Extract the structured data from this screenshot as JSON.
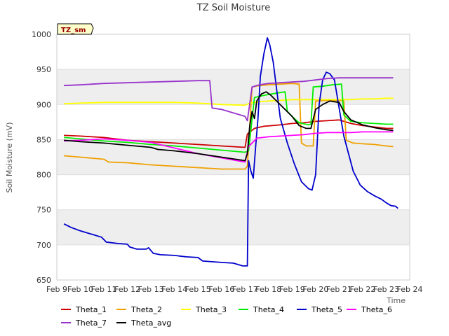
{
  "chart_data": {
    "type": "line",
    "title": "TZ Soil Moisture",
    "xlabel": "Time",
    "ylabel": "Soil Moisture (mV)",
    "badge": "TZ_sm",
    "xlim": [
      9,
      24
    ],
    "ylim": [
      650,
      1000
    ],
    "x_ticks": [
      9,
      10,
      11,
      12,
      13,
      14,
      15,
      16,
      17,
      18,
      19,
      20,
      21,
      22,
      23,
      24
    ],
    "x_tick_labels": [
      "Feb 9",
      "Feb 10",
      "Feb 11",
      "Feb 12",
      "Feb 13",
      "Feb 14",
      "Feb 15",
      "Feb 16",
      "Feb 17",
      "Feb 18",
      "Feb 19",
      "Feb 20",
      "Feb 21",
      "Feb 22",
      "Feb 23",
      "Feb 24"
    ],
    "y_ticks": [
      650,
      700,
      750,
      800,
      850,
      900,
      950,
      1000
    ],
    "y_tick_labels": [
      "650",
      "700",
      "750",
      "800",
      "850",
      "900",
      "950",
      "1000"
    ],
    "grid": true,
    "series": [
      {
        "name": "Theta_1",
        "color": "#cc0000",
        "points": [
          [
            9.3,
            856
          ],
          [
            10,
            855
          ],
          [
            11,
            853
          ],
          [
            12,
            849
          ],
          [
            13,
            847
          ],
          [
            14,
            845
          ],
          [
            15,
            843
          ],
          [
            16,
            841
          ],
          [
            17,
            839
          ],
          [
            17.1,
            858
          ],
          [
            17.4,
            866
          ],
          [
            17.8,
            869
          ],
          [
            18.5,
            871
          ],
          [
            19,
            873
          ],
          [
            19.5,
            874
          ],
          [
            20,
            876
          ],
          [
            20.5,
            877
          ],
          [
            21,
            878
          ],
          [
            21.5,
            873
          ],
          [
            22,
            870
          ],
          [
            22.5,
            868
          ],
          [
            23,
            866
          ],
          [
            23.3,
            866
          ]
        ]
      },
      {
        "name": "Theta_2",
        "color": "#f0a000",
        "points": [
          [
            9.3,
            827
          ],
          [
            10,
            825
          ],
          [
            11,
            822
          ],
          [
            11.2,
            818
          ],
          [
            12,
            817
          ],
          [
            13,
            814
          ],
          [
            14,
            812
          ],
          [
            15,
            810
          ],
          [
            16,
            808
          ],
          [
            17,
            808
          ],
          [
            17.1,
            812
          ],
          [
            17.3,
            925
          ],
          [
            17.6,
            927
          ],
          [
            18,
            928
          ],
          [
            18.5,
            929
          ],
          [
            19,
            930
          ],
          [
            19.3,
            929
          ],
          [
            19.4,
            845
          ],
          [
            19.6,
            841
          ],
          [
            19.9,
            841
          ],
          [
            20,
            905
          ],
          [
            20.5,
            906
          ],
          [
            21,
            906
          ],
          [
            21.2,
            905
          ],
          [
            21.3,
            849
          ],
          [
            21.6,
            845
          ],
          [
            22,
            844
          ],
          [
            22.5,
            843
          ],
          [
            23,
            841
          ],
          [
            23.3,
            840
          ]
        ]
      },
      {
        "name": "Theta_3",
        "color": "#ffff00",
        "points": [
          [
            9.3,
            901
          ],
          [
            10,
            902
          ],
          [
            11,
            903
          ],
          [
            12,
            903
          ],
          [
            13,
            903
          ],
          [
            14,
            903
          ],
          [
            15,
            902
          ],
          [
            16,
            900
          ],
          [
            17,
            899
          ],
          [
            17.2,
            902
          ],
          [
            17.6,
            904
          ],
          [
            18,
            905
          ],
          [
            18.5,
            906
          ],
          [
            19,
            907
          ],
          [
            19.5,
            907
          ],
          [
            20,
            907
          ],
          [
            21,
            907
          ],
          [
            21.5,
            907
          ],
          [
            22,
            908
          ],
          [
            22.5,
            908
          ],
          [
            23,
            909
          ],
          [
            23.3,
            909
          ]
        ]
      },
      {
        "name": "Theta_4",
        "color": "#00ee00",
        "points": [
          [
            9.3,
            853
          ],
          [
            10,
            851
          ],
          [
            11,
            848
          ],
          [
            12,
            846
          ],
          [
            13,
            843
          ],
          [
            14,
            841
          ],
          [
            15,
            838
          ],
          [
            16,
            835
          ],
          [
            17,
            832
          ],
          [
            17.15,
            834
          ],
          [
            17.4,
            910
          ],
          [
            17.8,
            913
          ],
          [
            18.3,
            916
          ],
          [
            18.7,
            918
          ],
          [
            18.8,
            890
          ],
          [
            19,
            883
          ],
          [
            19.3,
            874
          ],
          [
            19.7,
            871
          ],
          [
            19.8,
            872
          ],
          [
            19.9,
            925
          ],
          [
            20.3,
            926
          ],
          [
            20.7,
            928
          ],
          [
            21.1,
            929
          ],
          [
            21.2,
            885
          ],
          [
            21.5,
            876
          ],
          [
            22,
            874
          ],
          [
            22.5,
            873
          ],
          [
            23,
            872
          ],
          [
            23.3,
            872
          ]
        ]
      },
      {
        "name": "Theta_5",
        "color": "#0000cc",
        "points": [
          [
            9.3,
            730
          ],
          [
            9.6,
            725
          ],
          [
            10,
            720
          ],
          [
            10.5,
            715
          ],
          [
            10.9,
            711
          ],
          [
            11.1,
            704
          ],
          [
            11.6,
            702
          ],
          [
            12,
            701
          ],
          [
            12.1,
            697
          ],
          [
            12.4,
            694
          ],
          [
            12.8,
            694
          ],
          [
            12.9,
            696
          ],
          [
            13.1,
            688
          ],
          [
            13.4,
            686
          ],
          [
            14,
            685
          ],
          [
            14.5,
            683
          ],
          [
            15,
            682
          ],
          [
            15.2,
            677
          ],
          [
            16,
            675
          ],
          [
            16.5,
            674
          ],
          [
            16.9,
            670
          ],
          [
            17.1,
            670
          ],
          [
            17.15,
            820
          ],
          [
            17.25,
            805
          ],
          [
            17.35,
            795
          ],
          [
            17.45,
            840
          ],
          [
            17.55,
            880
          ],
          [
            17.65,
            940
          ],
          [
            17.8,
            972
          ],
          [
            17.95,
            995
          ],
          [
            18.05,
            985
          ],
          [
            18.2,
            960
          ],
          [
            18.35,
            920
          ],
          [
            18.5,
            880
          ],
          [
            18.8,
            845
          ],
          [
            19.1,
            815
          ],
          [
            19.4,
            790
          ],
          [
            19.7,
            780
          ],
          [
            19.85,
            778
          ],
          [
            20,
            800
          ],
          [
            20.15,
            900
          ],
          [
            20.3,
            935
          ],
          [
            20.45,
            946
          ],
          [
            20.6,
            944
          ],
          [
            20.8,
            935
          ],
          [
            21,
            895
          ],
          [
            21.2,
            855
          ],
          [
            21.4,
            830
          ],
          [
            21.6,
            805
          ],
          [
            21.9,
            785
          ],
          [
            22.2,
            776
          ],
          [
            22.5,
            770
          ],
          [
            22.8,
            765
          ],
          [
            23,
            760
          ],
          [
            23.2,
            756
          ],
          [
            23.4,
            755
          ],
          [
            23.5,
            752
          ]
        ]
      },
      {
        "name": "Theta_6",
        "color": "#ff00ff",
        "points": [
          [
            9.3,
            848
          ],
          [
            10,
            849
          ],
          [
            11,
            851
          ],
          [
            12,
            849
          ],
          [
            13,
            846
          ],
          [
            14,
            838
          ],
          [
            15,
            830
          ],
          [
            16,
            824
          ],
          [
            17,
            818
          ],
          [
            17.15,
            840
          ],
          [
            17.5,
            852
          ],
          [
            18,
            854
          ],
          [
            18.5,
            855
          ],
          [
            19,
            856
          ],
          [
            19.5,
            857
          ],
          [
            20,
            859
          ],
          [
            20.5,
            860
          ],
          [
            21,
            860
          ],
          [
            21.5,
            860
          ],
          [
            22,
            861
          ],
          [
            22.5,
            861
          ],
          [
            23,
            861
          ],
          [
            23.3,
            861
          ]
        ]
      },
      {
        "name": "Theta_7",
        "color": "#9933cc",
        "points": [
          [
            9.3,
            927
          ],
          [
            10,
            928
          ],
          [
            11,
            930
          ],
          [
            12,
            931
          ],
          [
            13,
            932
          ],
          [
            14,
            933
          ],
          [
            15,
            934
          ],
          [
            15.5,
            934
          ],
          [
            15.6,
            895
          ],
          [
            16,
            893
          ],
          [
            16.5,
            888
          ],
          [
            17,
            883
          ],
          [
            17.1,
            877
          ],
          [
            17.3,
            925
          ],
          [
            17.6,
            928
          ],
          [
            18,
            930
          ],
          [
            18.5,
            931
          ],
          [
            19,
            932
          ],
          [
            19.5,
            933
          ],
          [
            20,
            935
          ],
          [
            20.5,
            937
          ],
          [
            21,
            938
          ],
          [
            22,
            938
          ],
          [
            22.5,
            938
          ],
          [
            23,
            938
          ],
          [
            23.3,
            938
          ]
        ]
      },
      {
        "name": "Theta_avg",
        "color": "#000000",
        "points": [
          [
            9.3,
            849
          ],
          [
            10,
            847
          ],
          [
            11,
            845
          ],
          [
            12,
            842
          ],
          [
            13,
            839
          ],
          [
            13.3,
            836
          ],
          [
            14,
            834
          ],
          [
            15,
            830
          ],
          [
            16,
            825
          ],
          [
            17,
            820
          ],
          [
            17.1,
            830
          ],
          [
            17.2,
            870
          ],
          [
            17.3,
            890
          ],
          [
            17.4,
            880
          ],
          [
            17.5,
            905
          ],
          [
            17.7,
            915
          ],
          [
            17.9,
            918
          ],
          [
            18.1,
            913
          ],
          [
            18.4,
            903
          ],
          [
            18.7,
            893
          ],
          [
            19,
            883
          ],
          [
            19.3,
            870
          ],
          [
            19.6,
            866
          ],
          [
            19.8,
            866
          ],
          [
            20,
            893
          ],
          [
            20.3,
            900
          ],
          [
            20.6,
            905
          ],
          [
            21,
            903
          ],
          [
            21.2,
            890
          ],
          [
            21.5,
            878
          ],
          [
            22,
            871
          ],
          [
            22.5,
            867
          ],
          [
            23,
            864
          ],
          [
            23.3,
            863
          ]
        ]
      }
    ]
  }
}
